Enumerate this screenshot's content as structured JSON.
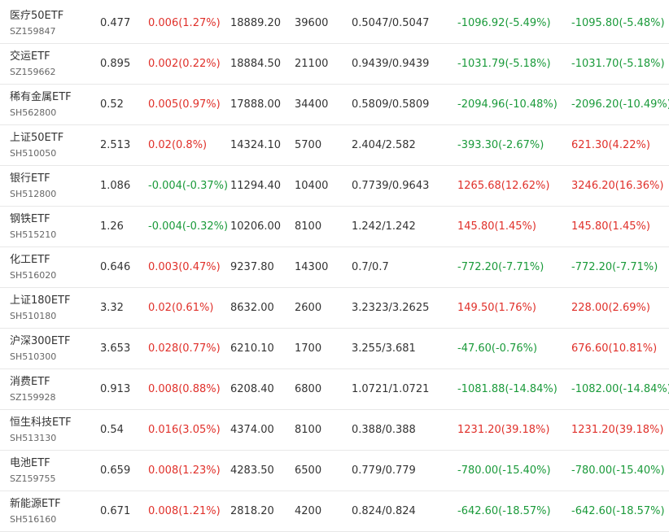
{
  "colors": {
    "up": "#e0302a",
    "down": "#1a9a3a",
    "text": "#333333",
    "code": "#666666",
    "divider": "#e8e8e8"
  },
  "rows": [
    {
      "name": "医疗50ETF",
      "code": "SZ159847",
      "price": "0.477",
      "change": "0.006(1.27%)",
      "change_dir": "up",
      "market_value": "18889.20",
      "quantity": "39600",
      "cost": "0.5047/0.5047",
      "pl1": "-1096.92(-5.49%)",
      "pl1_dir": "down",
      "pl2": "-1095.80(-5.48%)",
      "pl2_dir": "down"
    },
    {
      "name": "交运ETF",
      "code": "SZ159662",
      "price": "0.895",
      "change": "0.002(0.22%)",
      "change_dir": "up",
      "market_value": "18884.50",
      "quantity": "21100",
      "cost": "0.9439/0.9439",
      "pl1": "-1031.79(-5.18%)",
      "pl1_dir": "down",
      "pl2": "-1031.70(-5.18%)",
      "pl2_dir": "down"
    },
    {
      "name": "稀有金属ETF",
      "code": "SH562800",
      "price": "0.52",
      "change": "0.005(0.97%)",
      "change_dir": "up",
      "market_value": "17888.00",
      "quantity": "34400",
      "cost": "0.5809/0.5809",
      "pl1": "-2094.96(-10.48%)",
      "pl1_dir": "down",
      "pl2": "-2096.20(-10.49%)",
      "pl2_dir": "down"
    },
    {
      "name": "上证50ETF",
      "code": "SH510050",
      "price": "2.513",
      "change": "0.02(0.8%)",
      "change_dir": "up",
      "market_value": "14324.10",
      "quantity": "5700",
      "cost": "2.404/2.582",
      "pl1": "-393.30(-2.67%)",
      "pl1_dir": "down",
      "pl2": "621.30(4.22%)",
      "pl2_dir": "up"
    },
    {
      "name": "银行ETF",
      "code": "SH512800",
      "price": "1.086",
      "change": "-0.004(-0.37%)",
      "change_dir": "down",
      "market_value": "11294.40",
      "quantity": "10400",
      "cost": "0.7739/0.9643",
      "pl1": "1265.68(12.62%)",
      "pl1_dir": "up",
      "pl2": "3246.20(16.36%)",
      "pl2_dir": "up"
    },
    {
      "name": "钢铁ETF",
      "code": "SH515210",
      "price": "1.26",
      "change": "-0.004(-0.32%)",
      "change_dir": "down",
      "market_value": "10206.00",
      "quantity": "8100",
      "cost": "1.242/1.242",
      "pl1": "145.80(1.45%)",
      "pl1_dir": "up",
      "pl2": "145.80(1.45%)",
      "pl2_dir": "up"
    },
    {
      "name": "化工ETF",
      "code": "SH516020",
      "price": "0.646",
      "change": "0.003(0.47%)",
      "change_dir": "up",
      "market_value": "9237.80",
      "quantity": "14300",
      "cost": "0.7/0.7",
      "pl1": "-772.20(-7.71%)",
      "pl1_dir": "down",
      "pl2": "-772.20(-7.71%)",
      "pl2_dir": "down"
    },
    {
      "name": "上证180ETF",
      "code": "SH510180",
      "price": "3.32",
      "change": "0.02(0.61%)",
      "change_dir": "up",
      "market_value": "8632.00",
      "quantity": "2600",
      "cost": "3.2323/3.2625",
      "pl1": "149.50(1.76%)",
      "pl1_dir": "up",
      "pl2": "228.00(2.69%)",
      "pl2_dir": "up"
    },
    {
      "name": "沪深300ETF",
      "code": "SH510300",
      "price": "3.653",
      "change": "0.028(0.77%)",
      "change_dir": "up",
      "market_value": "6210.10",
      "quantity": "1700",
      "cost": "3.255/3.681",
      "pl1": "-47.60(-0.76%)",
      "pl1_dir": "down",
      "pl2": "676.60(10.81%)",
      "pl2_dir": "up"
    },
    {
      "name": "消费ETF",
      "code": "SZ159928",
      "price": "0.913",
      "change": "0.008(0.88%)",
      "change_dir": "up",
      "market_value": "6208.40",
      "quantity": "6800",
      "cost": "1.0721/1.0721",
      "pl1": "-1081.88(-14.84%)",
      "pl1_dir": "down",
      "pl2": "-1082.00(-14.84%)",
      "pl2_dir": "down"
    },
    {
      "name": "恒生科技ETF",
      "code": "SH513130",
      "price": "0.54",
      "change": "0.016(3.05%)",
      "change_dir": "up",
      "market_value": "4374.00",
      "quantity": "8100",
      "cost": "0.388/0.388",
      "pl1": "1231.20(39.18%)",
      "pl1_dir": "up",
      "pl2": "1231.20(39.18%)",
      "pl2_dir": "up"
    },
    {
      "name": "电池ETF",
      "code": "SZ159755",
      "price": "0.659",
      "change": "0.008(1.23%)",
      "change_dir": "up",
      "market_value": "4283.50",
      "quantity": "6500",
      "cost": "0.779/0.779",
      "pl1": "-780.00(-15.40%)",
      "pl1_dir": "down",
      "pl2": "-780.00(-15.40%)",
      "pl2_dir": "down"
    },
    {
      "name": "新能源ETF",
      "code": "SH516160",
      "price": "0.671",
      "change": "0.008(1.21%)",
      "change_dir": "up",
      "market_value": "2818.20",
      "quantity": "4200",
      "cost": "0.824/0.824",
      "pl1": "-642.60(-18.57%)",
      "pl1_dir": "down",
      "pl2": "-642.60(-18.57%)",
      "pl2_dir": "down"
    }
  ]
}
